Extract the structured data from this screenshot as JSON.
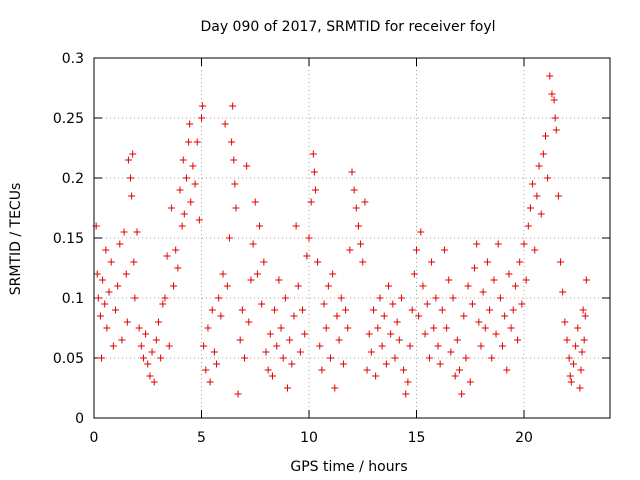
{
  "chart_data": {
    "type": "scatter",
    "title": "Day 090 of 2017, SRMTID for receiver foyl",
    "xlabel": "GPS time / hours",
    "ylabel": "SRMTID / TECUs",
    "xlim": [
      0,
      24
    ],
    "ylim": [
      0,
      0.3
    ],
    "xticks": [
      0,
      5,
      10,
      15,
      20
    ],
    "xtick_labels": [
      "0",
      "5",
      "10",
      "15",
      "20"
    ],
    "yticks": [
      0,
      0.05,
      0.1,
      0.15,
      0.2,
      0.25,
      0.3
    ],
    "ytick_labels": [
      "0",
      "0.05",
      "0.1",
      "0.15",
      "0.2",
      "0.25",
      "0.3"
    ],
    "grid": true,
    "marker": "+",
    "color": "#e00000",
    "series": [
      {
        "name": "SRMTID",
        "points": [
          [
            0.1,
            0.16
          ],
          [
            0.15,
            0.12
          ],
          [
            0.2,
            0.1
          ],
          [
            0.3,
            0.085
          ],
          [
            0.35,
            0.05
          ],
          [
            0.4,
            0.115
          ],
          [
            0.5,
            0.095
          ],
          [
            0.55,
            0.14
          ],
          [
            0.6,
            0.075
          ],
          [
            0.7,
            0.105
          ],
          [
            0.8,
            0.13
          ],
          [
            0.9,
            0.06
          ],
          [
            1.0,
            0.09
          ],
          [
            1.1,
            0.11
          ],
          [
            1.2,
            0.145
          ],
          [
            1.3,
            0.065
          ],
          [
            1.4,
            0.155
          ],
          [
            1.5,
            0.12
          ],
          [
            1.55,
            0.08
          ],
          [
            1.6,
            0.215
          ],
          [
            1.7,
            0.2
          ],
          [
            1.75,
            0.185
          ],
          [
            1.8,
            0.22
          ],
          [
            1.85,
            0.13
          ],
          [
            1.9,
            0.1
          ],
          [
            2.0,
            0.155
          ],
          [
            2.1,
            0.075
          ],
          [
            2.2,
            0.06
          ],
          [
            2.3,
            0.05
          ],
          [
            2.4,
            0.07
          ],
          [
            2.5,
            0.045
          ],
          [
            2.6,
            0.035
          ],
          [
            2.7,
            0.055
          ],
          [
            2.8,
            0.03
          ],
          [
            2.9,
            0.065
          ],
          [
            3.0,
            0.08
          ],
          [
            3.1,
            0.05
          ],
          [
            3.2,
            0.095
          ],
          [
            3.3,
            0.1
          ],
          [
            3.4,
            0.135
          ],
          [
            3.5,
            0.06
          ],
          [
            3.6,
            0.175
          ],
          [
            3.7,
            0.11
          ],
          [
            3.8,
            0.14
          ],
          [
            3.9,
            0.125
          ],
          [
            4.0,
            0.19
          ],
          [
            4.1,
            0.16
          ],
          [
            4.15,
            0.215
          ],
          [
            4.2,
            0.17
          ],
          [
            4.3,
            0.2
          ],
          [
            4.4,
            0.23
          ],
          [
            4.45,
            0.245
          ],
          [
            4.5,
            0.18
          ],
          [
            4.6,
            0.21
          ],
          [
            4.7,
            0.195
          ],
          [
            4.8,
            0.23
          ],
          [
            4.9,
            0.165
          ],
          [
            5.0,
            0.25
          ],
          [
            5.05,
            0.26
          ],
          [
            5.1,
            0.06
          ],
          [
            5.2,
            0.04
          ],
          [
            5.3,
            0.075
          ],
          [
            5.4,
            0.03
          ],
          [
            5.5,
            0.09
          ],
          [
            5.6,
            0.055
          ],
          [
            5.7,
            0.045
          ],
          [
            5.8,
            0.1
          ],
          [
            5.9,
            0.085
          ],
          [
            6.0,
            0.12
          ],
          [
            6.1,
            0.245
          ],
          [
            6.2,
            0.11
          ],
          [
            6.3,
            0.15
          ],
          [
            6.4,
            0.23
          ],
          [
            6.45,
            0.26
          ],
          [
            6.5,
            0.215
          ],
          [
            6.55,
            0.195
          ],
          [
            6.6,
            0.175
          ],
          [
            6.7,
            0.02
          ],
          [
            6.8,
            0.065
          ],
          [
            6.9,
            0.09
          ],
          [
            7.0,
            0.05
          ],
          [
            7.1,
            0.21
          ],
          [
            7.2,
            0.08
          ],
          [
            7.3,
            0.115
          ],
          [
            7.4,
            0.145
          ],
          [
            7.5,
            0.18
          ],
          [
            7.6,
            0.12
          ],
          [
            7.7,
            0.16
          ],
          [
            7.8,
            0.095
          ],
          [
            7.9,
            0.13
          ],
          [
            8.0,
            0.055
          ],
          [
            8.1,
            0.04
          ],
          [
            8.2,
            0.07
          ],
          [
            8.3,
            0.035
          ],
          [
            8.4,
            0.09
          ],
          [
            8.5,
            0.06
          ],
          [
            8.6,
            0.115
          ],
          [
            8.7,
            0.075
          ],
          [
            8.8,
            0.05
          ],
          [
            8.9,
            0.1
          ],
          [
            9.0,
            0.025
          ],
          [
            9.1,
            0.065
          ],
          [
            9.2,
            0.045
          ],
          [
            9.3,
            0.085
          ],
          [
            9.4,
            0.16
          ],
          [
            9.5,
            0.11
          ],
          [
            9.6,
            0.055
          ],
          [
            9.7,
            0.09
          ],
          [
            9.8,
            0.07
          ],
          [
            9.9,
            0.135
          ],
          [
            10.0,
            0.15
          ],
          [
            10.1,
            0.18
          ],
          [
            10.2,
            0.22
          ],
          [
            10.25,
            0.205
          ],
          [
            10.3,
            0.19
          ],
          [
            10.4,
            0.13
          ],
          [
            10.5,
            0.06
          ],
          [
            10.6,
            0.04
          ],
          [
            10.7,
            0.095
          ],
          [
            10.8,
            0.075
          ],
          [
            10.9,
            0.11
          ],
          [
            11.0,
            0.05
          ],
          [
            11.1,
            0.12
          ],
          [
            11.2,
            0.025
          ],
          [
            11.3,
            0.085
          ],
          [
            11.4,
            0.065
          ],
          [
            11.5,
            0.1
          ],
          [
            11.6,
            0.045
          ],
          [
            11.7,
            0.09
          ],
          [
            11.8,
            0.075
          ],
          [
            11.9,
            0.14
          ],
          [
            12.0,
            0.205
          ],
          [
            12.1,
            0.19
          ],
          [
            12.2,
            0.175
          ],
          [
            12.3,
            0.16
          ],
          [
            12.4,
            0.145
          ],
          [
            12.5,
            0.13
          ],
          [
            12.6,
            0.18
          ],
          [
            12.7,
            0.04
          ],
          [
            12.8,
            0.07
          ],
          [
            12.9,
            0.055
          ],
          [
            13.0,
            0.09
          ],
          [
            13.1,
            0.035
          ],
          [
            13.2,
            0.075
          ],
          [
            13.3,
            0.1
          ],
          [
            13.4,
            0.06
          ],
          [
            13.5,
            0.085
          ],
          [
            13.6,
            0.045
          ],
          [
            13.7,
            0.11
          ],
          [
            13.8,
            0.07
          ],
          [
            13.9,
            0.095
          ],
          [
            14.0,
            0.05
          ],
          [
            14.1,
            0.08
          ],
          [
            14.2,
            0.065
          ],
          [
            14.3,
            0.1
          ],
          [
            14.4,
            0.04
          ],
          [
            14.5,
            0.02
          ],
          [
            14.6,
            0.03
          ],
          [
            14.7,
            0.06
          ],
          [
            14.8,
            0.09
          ],
          [
            14.9,
            0.12
          ],
          [
            15.0,
            0.14
          ],
          [
            15.1,
            0.085
          ],
          [
            15.2,
            0.155
          ],
          [
            15.3,
            0.11
          ],
          [
            15.4,
            0.07
          ],
          [
            15.5,
            0.095
          ],
          [
            15.6,
            0.05
          ],
          [
            15.7,
            0.13
          ],
          [
            15.8,
            0.075
          ],
          [
            15.9,
            0.1
          ],
          [
            16.0,
            0.06
          ],
          [
            16.1,
            0.045
          ],
          [
            16.2,
            0.09
          ],
          [
            16.3,
            0.14
          ],
          [
            16.4,
            0.075
          ],
          [
            16.5,
            0.115
          ],
          [
            16.6,
            0.055
          ],
          [
            16.7,
            0.1
          ],
          [
            16.8,
            0.035
          ],
          [
            16.9,
            0.065
          ],
          [
            17.0,
            0.04
          ],
          [
            17.1,
            0.02
          ],
          [
            17.2,
            0.085
          ],
          [
            17.3,
            0.05
          ],
          [
            17.4,
            0.11
          ],
          [
            17.5,
            0.03
          ],
          [
            17.6,
            0.095
          ],
          [
            17.7,
            0.125
          ],
          [
            17.8,
            0.145
          ],
          [
            17.9,
            0.08
          ],
          [
            18.0,
            0.06
          ],
          [
            18.1,
            0.105
          ],
          [
            18.2,
            0.075
          ],
          [
            18.3,
            0.13
          ],
          [
            18.4,
            0.09
          ],
          [
            18.5,
            0.05
          ],
          [
            18.6,
            0.115
          ],
          [
            18.7,
            0.07
          ],
          [
            18.8,
            0.145
          ],
          [
            18.9,
            0.1
          ],
          [
            19.0,
            0.06
          ],
          [
            19.1,
            0.085
          ],
          [
            19.2,
            0.04
          ],
          [
            19.3,
            0.12
          ],
          [
            19.4,
            0.075
          ],
          [
            19.5,
            0.09
          ],
          [
            19.6,
            0.11
          ],
          [
            19.7,
            0.065
          ],
          [
            19.8,
            0.13
          ],
          [
            19.9,
            0.095
          ],
          [
            20.0,
            0.145
          ],
          [
            20.1,
            0.115
          ],
          [
            20.2,
            0.16
          ],
          [
            20.3,
            0.175
          ],
          [
            20.4,
            0.195
          ],
          [
            20.5,
            0.14
          ],
          [
            20.6,
            0.185
          ],
          [
            20.7,
            0.21
          ],
          [
            20.8,
            0.17
          ],
          [
            20.9,
            0.22
          ],
          [
            21.0,
            0.235
          ],
          [
            21.1,
            0.2
          ],
          [
            21.2,
            0.285
          ],
          [
            21.3,
            0.27
          ],
          [
            21.4,
            0.265
          ],
          [
            21.45,
            0.25
          ],
          [
            21.5,
            0.24
          ],
          [
            21.6,
            0.185
          ],
          [
            21.7,
            0.13
          ],
          [
            21.8,
            0.105
          ],
          [
            21.9,
            0.08
          ],
          [
            22.0,
            0.065
          ],
          [
            22.1,
            0.05
          ],
          [
            22.15,
            0.035
          ],
          [
            22.2,
            0.03
          ],
          [
            22.3,
            0.045
          ],
          [
            22.4,
            0.06
          ],
          [
            22.5,
            0.075
          ],
          [
            22.6,
            0.025
          ],
          [
            22.65,
            0.04
          ],
          [
            22.7,
            0.055
          ],
          [
            22.75,
            0.09
          ],
          [
            22.8,
            0.065
          ],
          [
            22.85,
            0.085
          ],
          [
            22.9,
            0.115
          ]
        ]
      }
    ]
  }
}
